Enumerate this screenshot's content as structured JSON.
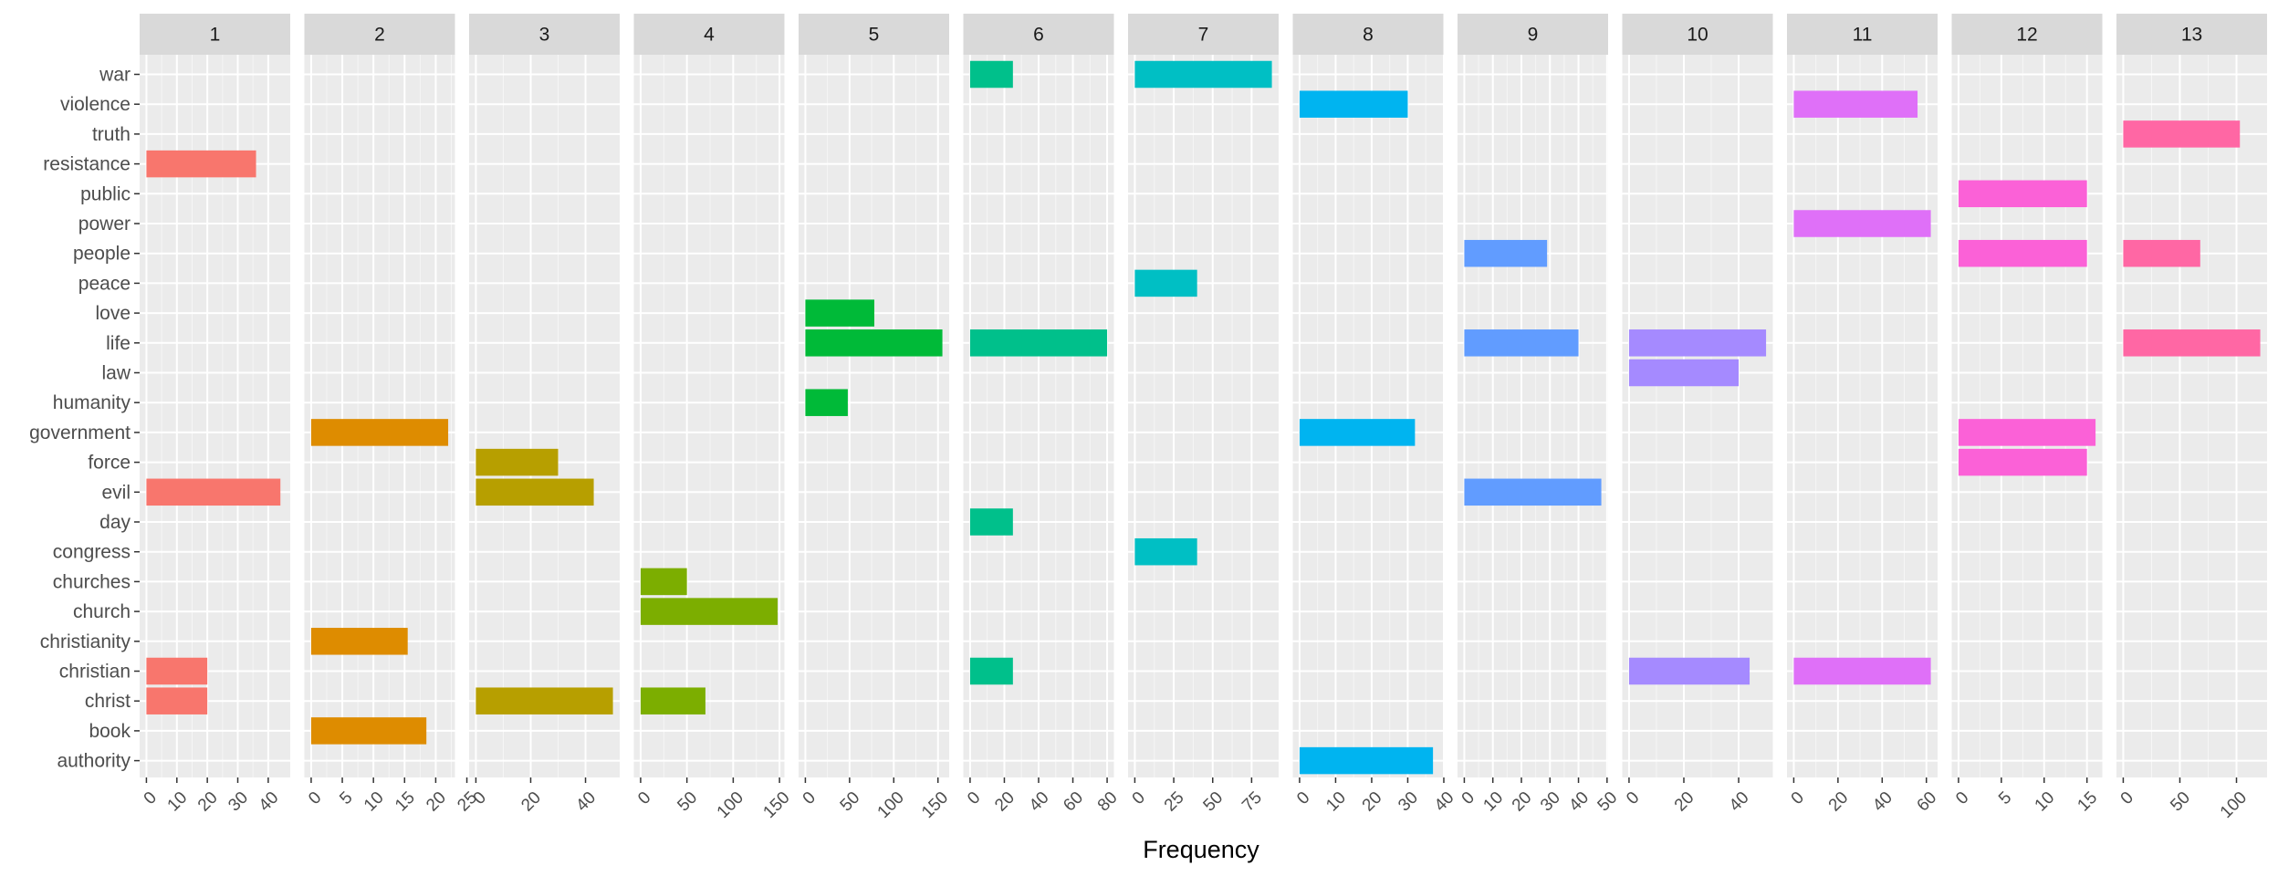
{
  "chart_data": {
    "type": "bar",
    "orientation": "horizontal",
    "faceted": true,
    "xlabel": "Frequency",
    "ylabel": "",
    "grid": true,
    "categories": [
      "war",
      "violence",
      "truth",
      "resistance",
      "public",
      "power",
      "people",
      "peace",
      "love",
      "life",
      "law",
      "humanity",
      "government",
      "force",
      "evil",
      "day",
      "congress",
      "churches",
      "church",
      "christianity",
      "christian",
      "christ",
      "book",
      "authority"
    ],
    "facets": [
      {
        "label": "1",
        "color": "#F8766D",
        "xlim": [
          0,
          45
        ],
        "ticks": [
          0,
          10,
          20,
          30,
          40
        ],
        "bars": [
          {
            "term": "resistance",
            "value": 36
          },
          {
            "term": "evil",
            "value": 44
          },
          {
            "term": "christian",
            "value": 20
          },
          {
            "term": "christ",
            "value": 20
          }
        ]
      },
      {
        "label": "2",
        "color": "#DE8C00",
        "xlim": [
          0,
          22
        ],
        "ticks": [
          0,
          5,
          10,
          15,
          20,
          25
        ],
        "bars": [
          {
            "term": "government",
            "value": 22
          },
          {
            "term": "christianity",
            "value": 15.5
          },
          {
            "term": "book",
            "value": 18.5
          }
        ]
      },
      {
        "label": "3",
        "color": "#B79F00",
        "xlim": [
          0,
          50
        ],
        "ticks": [
          0,
          20,
          40
        ],
        "bars": [
          {
            "term": "force",
            "value": 30
          },
          {
            "term": "evil",
            "value": 43
          },
          {
            "term": "christ",
            "value": 50
          }
        ]
      },
      {
        "label": "4",
        "color": "#7CAE00",
        "xlim": [
          0,
          148
        ],
        "ticks": [
          0,
          50,
          100,
          150
        ],
        "bars": [
          {
            "term": "churches",
            "value": 50
          },
          {
            "term": "church",
            "value": 148
          },
          {
            "term": "christ",
            "value": 70
          }
        ]
      },
      {
        "label": "5",
        "color": "#00BA38",
        "xlim": [
          0,
          155
        ],
        "ticks": [
          0,
          50,
          100,
          150
        ],
        "bars": [
          {
            "term": "love",
            "value": 78
          },
          {
            "term": "life",
            "value": 155
          },
          {
            "term": "humanity",
            "value": 48
          }
        ]
      },
      {
        "label": "6",
        "color": "#00C08B",
        "xlim": [
          0,
          80
        ],
        "ticks": [
          0,
          20,
          40,
          60,
          80
        ],
        "bars": [
          {
            "term": "war",
            "value": 25
          },
          {
            "term": "life",
            "value": 80
          },
          {
            "term": "day",
            "value": 25
          },
          {
            "term": "christian",
            "value": 25
          }
        ]
      },
      {
        "label": "7",
        "color": "#00BFC4",
        "xlim": [
          0,
          88
        ],
        "ticks": [
          0,
          25,
          50,
          75
        ],
        "bars": [
          {
            "term": "war",
            "value": 88
          },
          {
            "term": "peace",
            "value": 40
          },
          {
            "term": "congress",
            "value": 40
          }
        ]
      },
      {
        "label": "8",
        "color": "#00B4F0",
        "xlim": [
          0,
          38
        ],
        "ticks": [
          0,
          10,
          20,
          30,
          40
        ],
        "bars": [
          {
            "term": "violence",
            "value": 30
          },
          {
            "term": "government",
            "value": 32
          },
          {
            "term": "authority",
            "value": 37
          }
        ]
      },
      {
        "label": "9",
        "color": "#619CFF",
        "xlim": [
          0,
          48
        ],
        "ticks": [
          0,
          10,
          20,
          30,
          40,
          50
        ],
        "bars": [
          {
            "term": "people",
            "value": 29
          },
          {
            "term": "life",
            "value": 40
          },
          {
            "term": "evil",
            "value": 48
          }
        ]
      },
      {
        "label": "10",
        "color": "#A58AFF",
        "xlim": [
          0,
          50
        ],
        "ticks": [
          0,
          20,
          40
        ],
        "bars": [
          {
            "term": "life",
            "value": 50
          },
          {
            "term": "law",
            "value": 40
          },
          {
            "term": "christian",
            "value": 44
          }
        ]
      },
      {
        "label": "11",
        "color": "#DF70F8",
        "xlim": [
          0,
          62
        ],
        "ticks": [
          0,
          20,
          40,
          60
        ],
        "bars": [
          {
            "term": "violence",
            "value": 56
          },
          {
            "term": "power",
            "value": 62
          },
          {
            "term": "christian",
            "value": 62
          }
        ]
      },
      {
        "label": "12",
        "color": "#FB61D7",
        "xlim": [
          0,
          16
        ],
        "ticks": [
          0,
          5,
          10,
          15
        ],
        "bars": [
          {
            "term": "public",
            "value": 15
          },
          {
            "term": "people",
            "value": 15
          },
          {
            "term": "government",
            "value": 16
          },
          {
            "term": "force",
            "value": 15
          }
        ]
      },
      {
        "label": "13",
        "color": "#FF67A4",
        "xlim": [
          0,
          121
        ],
        "ticks": [
          0,
          50,
          100
        ],
        "bars": [
          {
            "term": "truth",
            "value": 103
          },
          {
            "term": "people",
            "value": 68
          },
          {
            "term": "life",
            "value": 121
          }
        ]
      }
    ]
  }
}
